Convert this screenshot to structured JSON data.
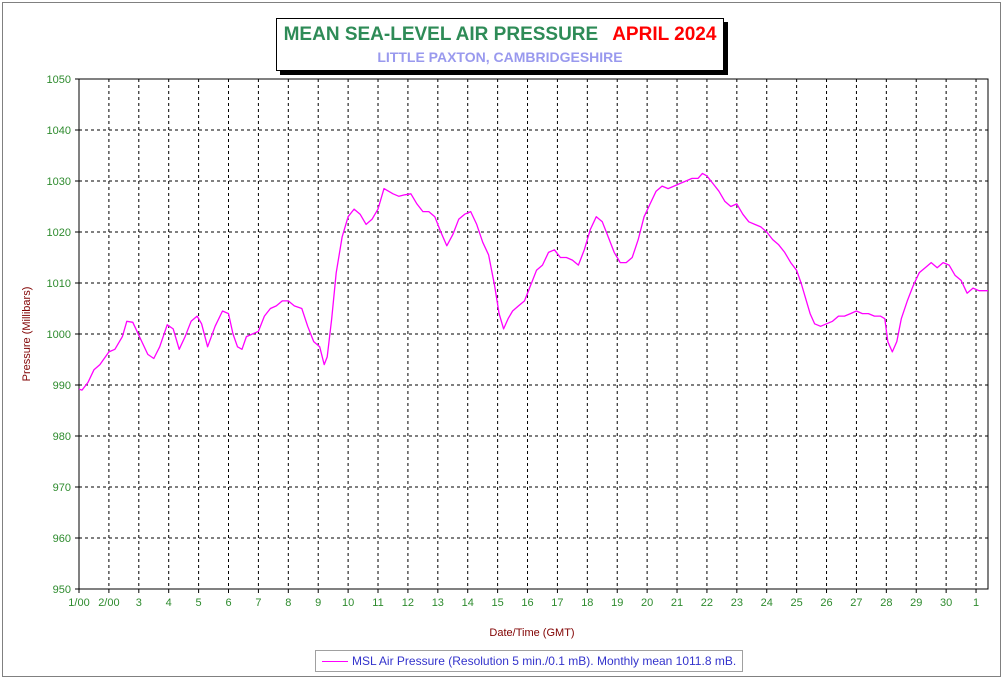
{
  "chart_data": {
    "type": "line",
    "title": "MEAN SEA-LEVEL AIR PRESSURE",
    "title_month": "APRIL 2024",
    "subtitle": "LITTLE PAXTON, CAMBRIDGESHIRE",
    "xlabel": "Date/Time (GMT)",
    "ylabel": "Pressure (Millibars)",
    "ylim": [
      950,
      1050
    ],
    "xlim": [
      1,
      31.4
    ],
    "grid": true,
    "legend_position": "bottom-center",
    "yticks": [
      "950",
      "960",
      "970",
      "980",
      "990",
      "1000",
      "1010",
      "1020",
      "1030",
      "1040",
      "1050"
    ],
    "xticks": [
      {
        "x": 1,
        "label": "1/00"
      },
      {
        "x": 2,
        "label": "2/00"
      },
      {
        "x": 3,
        "label": "3"
      },
      {
        "x": 4,
        "label": "4"
      },
      {
        "x": 5,
        "label": "5"
      },
      {
        "x": 6,
        "label": "6"
      },
      {
        "x": 7,
        "label": "7"
      },
      {
        "x": 8,
        "label": "8"
      },
      {
        "x": 9,
        "label": "9"
      },
      {
        "x": 10,
        "label": "10"
      },
      {
        "x": 11,
        "label": "11"
      },
      {
        "x": 12,
        "label": "12"
      },
      {
        "x": 13,
        "label": "13"
      },
      {
        "x": 14,
        "label": "14"
      },
      {
        "x": 15,
        "label": "15"
      },
      {
        "x": 16,
        "label": "16"
      },
      {
        "x": 17,
        "label": "17"
      },
      {
        "x": 18,
        "label": "18"
      },
      {
        "x": 19,
        "label": "19"
      },
      {
        "x": 20,
        "label": "20"
      },
      {
        "x": 21,
        "label": "21"
      },
      {
        "x": 22,
        "label": "22"
      },
      {
        "x": 23,
        "label": "23"
      },
      {
        "x": 24,
        "label": "24"
      },
      {
        "x": 25,
        "label": "25"
      },
      {
        "x": 26,
        "label": "26"
      },
      {
        "x": 27,
        "label": "27"
      },
      {
        "x": 28,
        "label": "28"
      },
      {
        "x": 29,
        "label": "29"
      },
      {
        "x": 30,
        "label": "30"
      },
      {
        "x": 31,
        "label": "1"
      }
    ],
    "series": [
      {
        "name": "MSL Air Pressure (Resolution 5 min./0.1 mB). Monthly mean 1011.8 mB.",
        "color": "#ff00ff",
        "x": [
          1.0,
          1.1,
          1.3,
          1.5,
          1.7,
          2.0,
          2.2,
          2.45,
          2.6,
          2.8,
          3.1,
          3.3,
          3.5,
          3.7,
          3.95,
          4.15,
          4.35,
          4.55,
          4.75,
          4.95,
          5.1,
          5.3,
          5.55,
          5.8,
          6.0,
          6.15,
          6.3,
          6.45,
          6.6,
          6.8,
          7.0,
          7.2,
          7.4,
          7.6,
          7.8,
          8.0,
          8.2,
          8.45,
          8.65,
          8.85,
          9.05,
          9.2,
          9.3,
          9.45,
          9.6,
          9.8,
          10.0,
          10.2,
          10.4,
          10.6,
          10.8,
          11.0,
          11.2,
          11.5,
          11.7,
          11.9,
          12.1,
          12.3,
          12.5,
          12.7,
          12.9,
          13.1,
          13.3,
          13.5,
          13.7,
          13.9,
          14.1,
          14.3,
          14.5,
          14.7,
          14.9,
          15.05,
          15.2,
          15.35,
          15.5,
          15.7,
          15.9,
          16.1,
          16.3,
          16.5,
          16.7,
          16.9,
          17.1,
          17.3,
          17.5,
          17.7,
          17.9,
          18.1,
          18.3,
          18.5,
          18.7,
          18.9,
          19.1,
          19.3,
          19.5,
          19.7,
          19.9,
          20.1,
          20.3,
          20.5,
          20.7,
          20.9,
          21.1,
          21.3,
          21.5,
          21.7,
          21.85,
          22.0,
          22.2,
          22.4,
          22.6,
          22.8,
          23.0,
          23.2,
          23.4,
          23.6,
          23.8,
          24.0,
          24.2,
          24.4,
          24.6,
          24.8,
          25.0,
          25.15,
          25.3,
          25.45,
          25.6,
          25.8,
          26.0,
          26.2,
          26.4,
          26.6,
          26.8,
          27.0,
          27.2,
          27.4,
          27.6,
          27.8,
          27.95,
          28.05,
          28.2,
          28.35,
          28.5,
          28.7,
          28.9,
          29.1,
          29.3,
          29.5,
          29.7,
          29.9,
          30.1,
          30.3,
          30.5,
          30.7,
          30.9,
          31.1,
          31.4
        ],
        "values": [
          989.2,
          989.0,
          990.5,
          993.0,
          994.0,
          996.5,
          997.0,
          999.5,
          1002.5,
          1002.3,
          998.5,
          996.0,
          995.2,
          997.5,
          1001.8,
          1001.0,
          997.0,
          999.5,
          1002.5,
          1003.5,
          1002.0,
          997.5,
          1001.5,
          1004.5,
          1004.0,
          1000.0,
          997.5,
          997.0,
          999.5,
          1000.0,
          1000.5,
          1003.5,
          1005.0,
          1005.5,
          1006.5,
          1006.5,
          1005.5,
          1005.0,
          1001.5,
          998.5,
          997.5,
          994.0,
          995.5,
          1003.0,
          1012.0,
          1019.0,
          1023.0,
          1024.5,
          1023.5,
          1021.5,
          1022.5,
          1024.5,
          1028.5,
          1027.5,
          1027.0,
          1027.3,
          1027.5,
          1025.5,
          1024.0,
          1024.0,
          1023.0,
          1020.0,
          1017.3,
          1019.5,
          1022.5,
          1023.5,
          1024.0,
          1021.5,
          1018.0,
          1015.5,
          1009.5,
          1004.0,
          1001.0,
          1003.0,
          1004.5,
          1005.5,
          1006.5,
          1009.5,
          1012.5,
          1013.5,
          1016.0,
          1016.5,
          1015.0,
          1015.0,
          1014.5,
          1013.5,
          1016.5,
          1020.5,
          1023.0,
          1022.0,
          1019.0,
          1016.0,
          1014.0,
          1014.0,
          1015.0,
          1018.5,
          1023.0,
          1025.5,
          1028.0,
          1029.0,
          1028.5,
          1029.0,
          1029.5,
          1030.0,
          1030.5,
          1030.5,
          1031.5,
          1031.0,
          1029.5,
          1028.0,
          1026.0,
          1025.0,
          1025.5,
          1023.5,
          1022.0,
          1021.5,
          1021.0,
          1020.0,
          1018.5,
          1017.5,
          1016.0,
          1014.0,
          1012.5,
          1010.0,
          1007.0,
          1004.0,
          1002.0,
          1001.5,
          1002.0,
          1002.5,
          1003.5,
          1003.5,
          1004.0,
          1004.5,
          1004.0,
          1004.0,
          1003.5,
          1003.5,
          1003.0,
          998.5,
          996.5,
          998.5,
          1003.0,
          1006.5,
          1009.5,
          1012.0,
          1013.0,
          1014.0,
          1013.0,
          1014.0,
          1013.5,
          1011.5,
          1010.5,
          1008.0,
          1009.0,
          1008.5,
          1008.5
        ]
      }
    ]
  }
}
